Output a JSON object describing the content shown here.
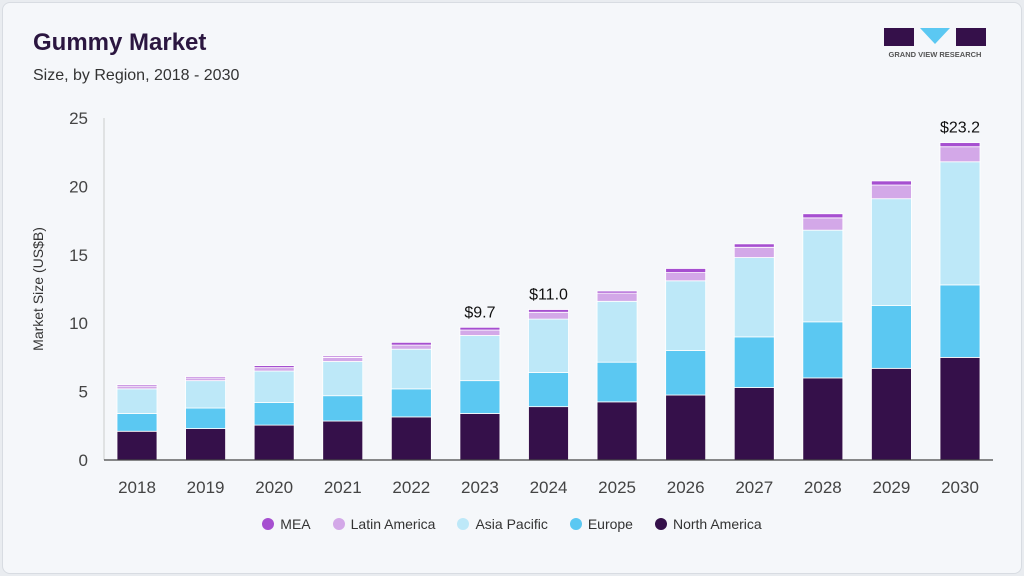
{
  "header": {
    "title": "Gummy Market",
    "subtitle": "Size, by Region, 2018 - 2030",
    "logo_text": "GRAND VIEW RESEARCH"
  },
  "chart_data": {
    "type": "bar",
    "stacked": true,
    "title": "Gummy Market",
    "subtitle": "Size, by Region, 2018 - 2030",
    "xlabel": "",
    "ylabel": "Market Size (US$B)",
    "ylim": [
      0,
      25
    ],
    "yticks": [
      0,
      5,
      10,
      15,
      20,
      25
    ],
    "grid": false,
    "legend_position": "bottom",
    "categories": [
      "2018",
      "2019",
      "2020",
      "2021",
      "2022",
      "2023",
      "2024",
      "2025",
      "2026",
      "2027",
      "2028",
      "2029",
      "2030"
    ],
    "series": [
      {
        "name": "North America",
        "color": "#35104a",
        "values": [
          2.1,
          2.3,
          2.55,
          2.85,
          3.15,
          3.4,
          3.9,
          4.25,
          4.75,
          5.3,
          6.0,
          6.7,
          7.5
        ]
      },
      {
        "name": "Europe",
        "color": "#5bc8f2",
        "values": [
          1.3,
          1.5,
          1.65,
          1.85,
          2.05,
          2.4,
          2.5,
          2.9,
          3.25,
          3.7,
          4.1,
          4.6,
          5.3
        ]
      },
      {
        "name": "Asia Pacific",
        "color": "#bde8f8",
        "values": [
          1.8,
          2.0,
          2.3,
          2.5,
          2.9,
          3.3,
          3.9,
          4.45,
          5.1,
          5.8,
          6.7,
          7.8,
          9.0
        ]
      },
      {
        "name": "Latin America",
        "color": "#d3a8e8",
        "values": [
          0.2,
          0.2,
          0.25,
          0.3,
          0.3,
          0.4,
          0.5,
          0.6,
          0.6,
          0.75,
          0.9,
          1.0,
          1.1
        ]
      },
      {
        "name": "MEA",
        "color": "#a64fd0",
        "values": [
          0.1,
          0.1,
          0.15,
          0.1,
          0.2,
          0.2,
          0.2,
          0.15,
          0.3,
          0.25,
          0.3,
          0.3,
          0.3
        ]
      }
    ],
    "data_labels": [
      {
        "category": "2023",
        "text": "$9.7"
      },
      {
        "category": "2024",
        "text": "$11.0"
      },
      {
        "category": "2030",
        "text": "$23.2"
      }
    ],
    "legend_order": [
      "MEA",
      "Latin America",
      "Asia Pacific",
      "Europe",
      "North America"
    ]
  }
}
